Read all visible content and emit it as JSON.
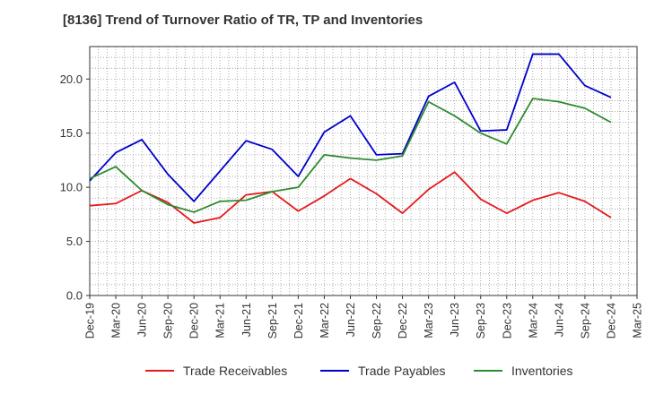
{
  "chart_data": {
    "type": "line",
    "title": "[8136]  Trend of Turnover Ratio of TR, TP and Inventories",
    "xlabel": "",
    "ylabel": "",
    "ylim": [
      0,
      23
    ],
    "y_ticks": [
      "0.0",
      "5.0",
      "10.0",
      "15.0",
      "20.0"
    ],
    "x_tick_labels": [
      "Dec-19",
      "Mar-20",
      "Jun-20",
      "Sep-20",
      "Dec-20",
      "Mar-21",
      "Jun-21",
      "Sep-21",
      "Dec-21",
      "Mar-22",
      "Jun-22",
      "Sep-22",
      "Dec-22",
      "Mar-23",
      "Jun-23",
      "Sep-23",
      "Dec-23",
      "Mar-24",
      "Jun-24",
      "Sep-24",
      "Dec-24",
      "Mar-25"
    ],
    "x": [
      "Dec-19",
      "Jan-20",
      "Feb-20",
      "Mar-20",
      "Apr-20",
      "May-20",
      "Jun-20",
      "Jul-20",
      "Aug-20",
      "Sep-20",
      "Oct-20",
      "Nov-20",
      "Dec-20",
      "Jan-21",
      "Feb-21",
      "Mar-21",
      "Apr-21",
      "May-21",
      "Jun-21",
      "Jul-21",
      "Aug-21",
      "Sep-21",
      "Oct-21",
      "Nov-21",
      "Dec-21",
      "Jan-22",
      "Feb-22",
      "Mar-22",
      "Apr-22",
      "May-22",
      "Jun-22",
      "Jul-22",
      "Aug-22",
      "Sep-22",
      "Oct-22",
      "Nov-22",
      "Dec-22",
      "Jan-23",
      "Feb-23",
      "Mar-23",
      "Apr-23",
      "May-23",
      "Jun-23",
      "Jul-23",
      "Aug-23",
      "Sep-23",
      "Oct-23",
      "Nov-23",
      "Dec-23",
      "Jan-24",
      "Feb-24",
      "Mar-24",
      "Apr-24",
      "May-24",
      "Jun-24",
      "Jul-24",
      "Aug-24",
      "Sep-24",
      "Oct-24",
      "Nov-24",
      "Dec-24"
    ],
    "series": [
      {
        "name": "Trade Receivables",
        "color": "#e41a1c",
        "values": [
          8.3,
          null,
          null,
          8.5,
          null,
          null,
          9.7,
          null,
          null,
          8.6,
          null,
          null,
          6.7,
          null,
          null,
          7.2,
          null,
          null,
          9.3,
          null,
          null,
          9.6,
          null,
          null,
          7.8,
          null,
          null,
          9.2,
          null,
          null,
          10.8,
          null,
          null,
          9.4,
          null,
          null,
          7.6,
          null,
          null,
          9.8,
          null,
          null,
          11.4,
          null,
          null,
          8.9,
          null,
          null,
          7.6,
          null,
          null,
          8.8,
          null,
          null,
          9.5,
          null,
          null,
          8.7,
          null,
          null,
          7.2
        ]
      },
      {
        "name": "Trade Payables",
        "color": "#0000cc",
        "values": [
          10.6,
          null,
          null,
          13.2,
          null,
          null,
          14.4,
          null,
          null,
          11.2,
          null,
          null,
          8.7,
          null,
          null,
          11.5,
          null,
          null,
          14.3,
          null,
          null,
          13.5,
          null,
          null,
          11.0,
          null,
          null,
          15.1,
          null,
          null,
          16.6,
          null,
          null,
          13.0,
          null,
          null,
          13.1,
          null,
          null,
          18.4,
          null,
          null,
          19.7,
          null,
          null,
          15.2,
          null,
          null,
          15.3,
          null,
          null,
          22.3,
          null,
          null,
          22.3,
          null,
          null,
          19.4,
          null,
          null,
          18.3
        ]
      },
      {
        "name": "Inventories",
        "color": "#2e8b2e",
        "values": [
          10.8,
          null,
          null,
          11.9,
          null,
          null,
          9.7,
          null,
          null,
          8.4,
          null,
          null,
          7.7,
          null,
          null,
          8.7,
          null,
          null,
          8.8,
          null,
          null,
          9.6,
          null,
          null,
          10.0,
          null,
          null,
          13.0,
          null,
          null,
          12.7,
          null,
          null,
          12.5,
          null,
          null,
          12.9,
          null,
          null,
          17.9,
          null,
          null,
          16.6,
          null,
          null,
          15.0,
          null,
          null,
          14.0,
          null,
          null,
          18.2,
          null,
          null,
          17.9,
          null,
          null,
          17.3,
          null,
          null,
          16.0
        ]
      }
    ],
    "grid": true,
    "legend_position": "bottom"
  }
}
